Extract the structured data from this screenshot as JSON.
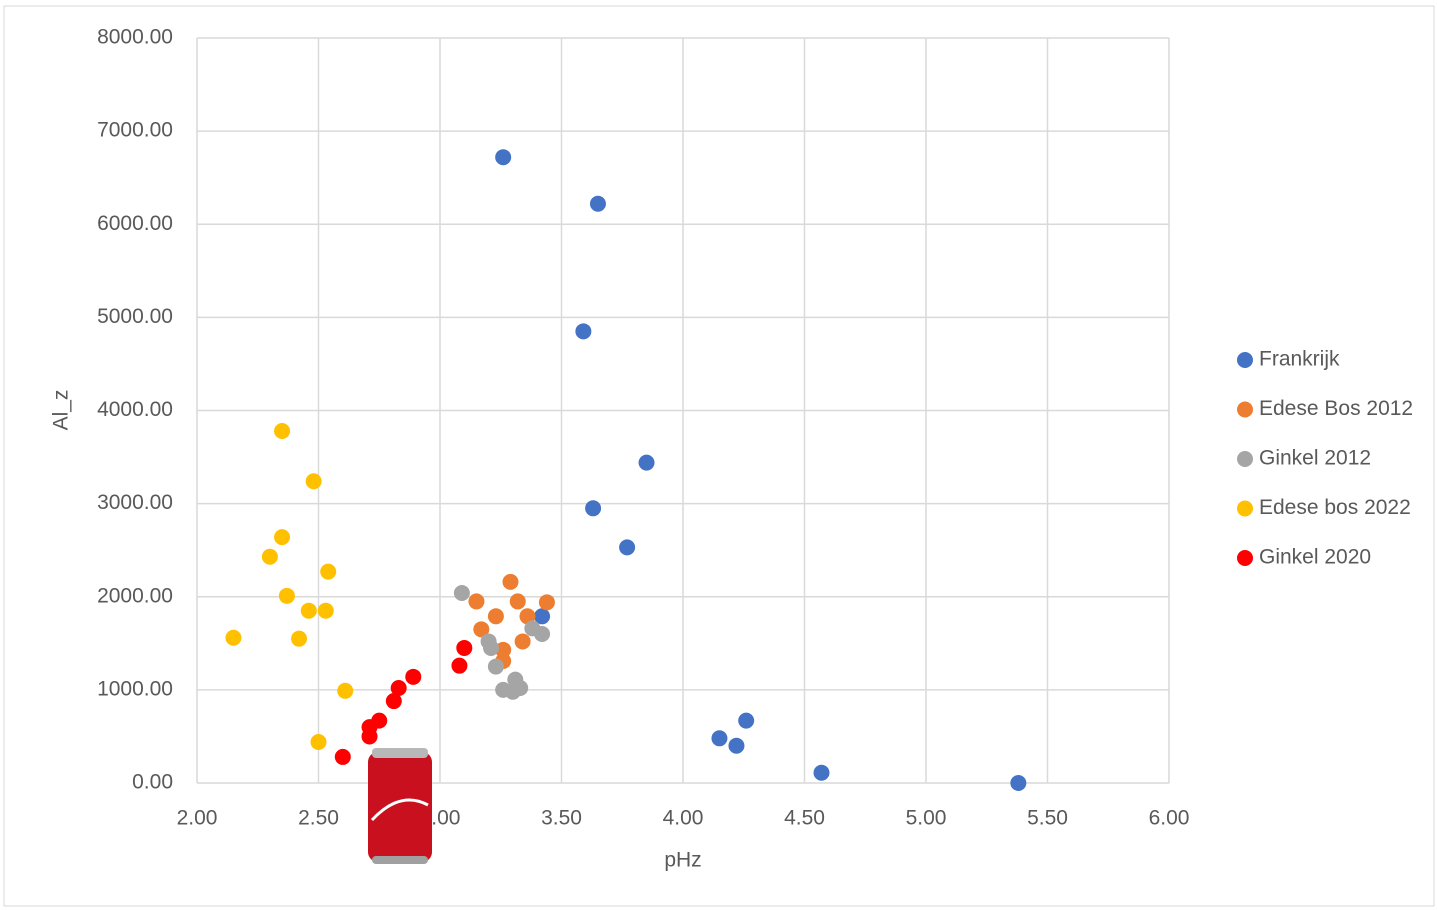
{
  "chart_data": {
    "type": "scatter",
    "x_label": "pHz",
    "y_label": "Al_z",
    "xlim": [
      2,
      6
    ],
    "ylim": [
      0,
      8000
    ],
    "xticks": [
      {
        "value": 2,
        "label": "2.00"
      },
      {
        "value": 2.5,
        "label": "2.50"
      },
      {
        "value": 3,
        "label": "3.00"
      },
      {
        "value": 3.5,
        "label": "3.50"
      },
      {
        "value": 4,
        "label": "4.00"
      },
      {
        "value": 4.5,
        "label": "4.50"
      },
      {
        "value": 5,
        "label": "5.00"
      },
      {
        "value": 5.5,
        "label": "5.50"
      },
      {
        "value": 6,
        "label": "6.00"
      }
    ],
    "yticks": [
      {
        "value": 0,
        "label": "0.00"
      },
      {
        "value": 1000,
        "label": "1000.00"
      },
      {
        "value": 2000,
        "label": "2000.00"
      },
      {
        "value": 3000,
        "label": "3000.00"
      },
      {
        "value": 4000,
        "label": "4000.00"
      },
      {
        "value": 5000,
        "label": "5000.00"
      },
      {
        "value": 6000,
        "label": "6000.00"
      },
      {
        "value": 7000,
        "label": "7000.00"
      },
      {
        "value": 8000,
        "label": "8000.00"
      }
    ],
    "grid": true,
    "legend": "right",
    "series": [
      {
        "name": "Frankrijk",
        "color": "#4472c4",
        "x": [
          3.26,
          3.65,
          3.59,
          3.85,
          3.63,
          3.77,
          3.42,
          4.15,
          4.26,
          4.22,
          4.57,
          5.38
        ],
        "values": [
          6720,
          6220,
          4850,
          3440,
          2950,
          2530,
          1790,
          480,
          670,
          400,
          110,
          0
        ]
      },
      {
        "name": "Edese Bos 2012",
        "color": "#ed7d31",
        "x": [
          3.29,
          3.15,
          3.32,
          3.44,
          3.23,
          3.36,
          3.17,
          3.34,
          3.26,
          3.26
        ],
        "values": [
          2160,
          1950,
          1950,
          1940,
          1790,
          1790,
          1650,
          1520,
          1430,
          1310
        ]
      },
      {
        "name": "Ginkel 2012",
        "color": "#a5a5a5",
        "x": [
          3.09,
          3.2,
          3.21,
          3.38,
          3.42,
          3.23,
          3.31,
          3.26,
          3.33,
          3.3
        ],
        "values": [
          2040,
          1520,
          1450,
          1660,
          1600,
          1250,
          1110,
          1000,
          1020,
          980
        ]
      },
      {
        "name": "Edese bos 2022",
        "color": "#ffc000",
        "x": [
          2.35,
          2.48,
          2.35,
          2.3,
          2.54,
          2.37,
          2.46,
          2.53,
          2.15,
          2.42,
          2.61,
          2.5
        ],
        "values": [
          3780,
          3240,
          2640,
          2430,
          2270,
          2010,
          1850,
          1850,
          1560,
          1550,
          990,
          440
        ]
      },
      {
        "name": "Ginkel 2020",
        "color": "#ff0000",
        "x": [
          2.6,
          2.71,
          2.71,
          2.75,
          2.81,
          2.83,
          2.89,
          3.08,
          3.1
        ],
        "values": [
          280,
          500,
          600,
          670,
          880,
          1020,
          1140,
          1260,
          1450
        ]
      }
    ]
  }
}
